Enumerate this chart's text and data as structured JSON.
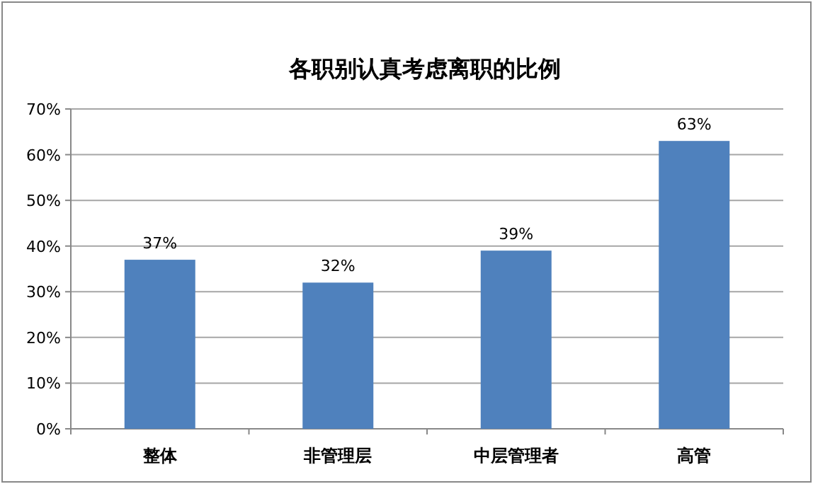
{
  "chart_data": {
    "type": "bar",
    "title": "各职别认真考虑离职的比例",
    "categories": [
      "整体",
      "非管理层",
      "中层管理者",
      "高管"
    ],
    "values": [
      37,
      32,
      39,
      63
    ],
    "color": "#4f81bd",
    "value_labels": [
      "37%",
      "32%",
      "39%",
      "63%"
    ],
    "ylim": [
      0,
      70
    ],
    "yticks": [
      {
        "value": 0,
        "label": "0%"
      },
      {
        "value": 10,
        "label": "10%"
      },
      {
        "value": 20,
        "label": "20%"
      },
      {
        "value": 30,
        "label": "30%"
      },
      {
        "value": 40,
        "label": "40%"
      },
      {
        "value": 50,
        "label": "50%"
      },
      {
        "value": 60,
        "label": "60%"
      },
      {
        "value": 70,
        "label": "70%"
      }
    ],
    "grid": "y"
  }
}
